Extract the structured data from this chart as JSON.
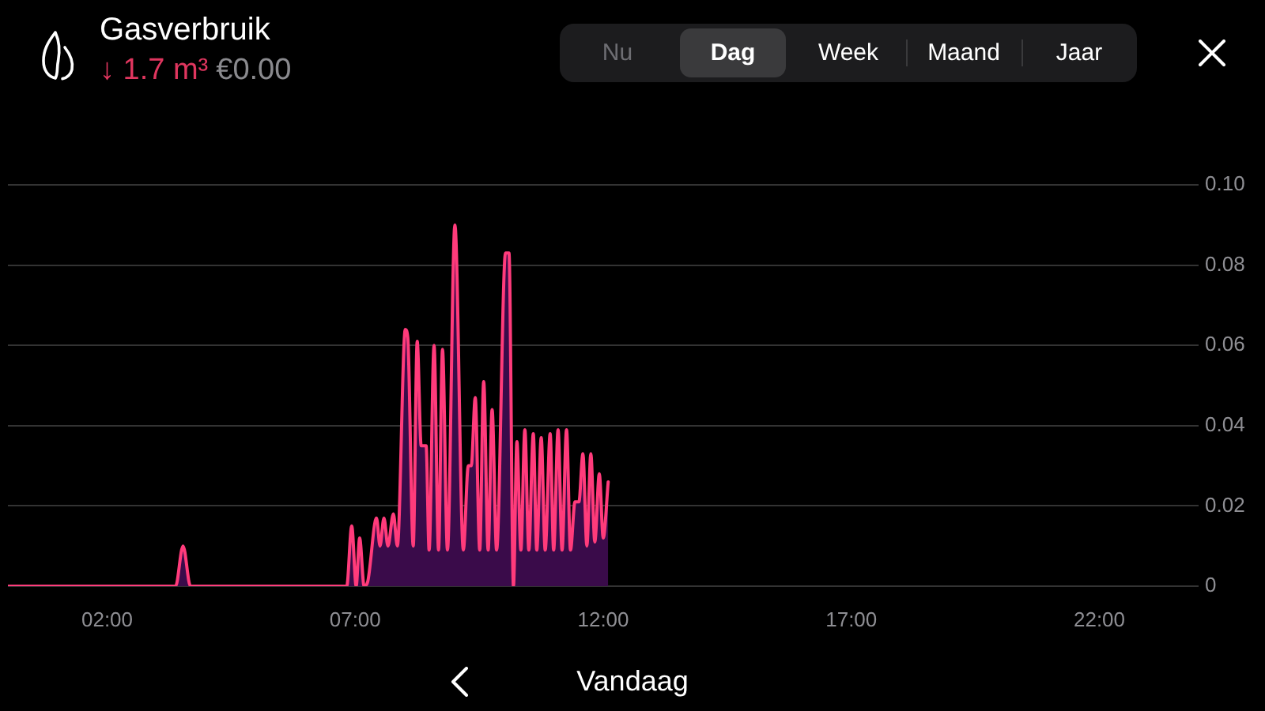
{
  "chart_data": {
    "type": "area",
    "title": "Gasverbruik",
    "subtitle": "↓ 1.7 m³",
    "annotations": [
      "€0.00",
      "Nu",
      "Dag",
      "Week",
      "Maand",
      "Jaar",
      "Vandaag"
    ],
    "xlim": [
      0,
      24
    ],
    "xticks": [
      {
        "value": 2,
        "label": "02:00"
      },
      {
        "value": 7,
        "label": "07:00"
      },
      {
        "value": 12,
        "label": "12:00"
      },
      {
        "value": 17,
        "label": "17:00"
      },
      {
        "value": 22,
        "label": "22:00"
      }
    ],
    "ylim": [
      0,
      0.1
    ],
    "yticks": [
      0,
      0.02,
      0.04,
      0.06,
      0.08,
      {
        "value": 0.1,
        "label": "0.10"
      }
    ],
    "grid": "y",
    "color": "#ff3b7b",
    "x": [
      0,
      3.38,
      3.53,
      3.68,
      6.83,
      6.93,
      7.02,
      7.09,
      7.18,
      7.25,
      7.43,
      7.5,
      7.58,
      7.66,
      7.77,
      7.85,
      8.01,
      8.06,
      8.17,
      8.25,
      8.33,
      8.43,
      8.49,
      8.59,
      8.68,
      8.76,
      8.86,
      9.01,
      9.18,
      9.28,
      9.34,
      9.42,
      9.51,
      9.59,
      9.68,
      9.76,
      9.85,
      10.03,
      10.1,
      10.19,
      10.26,
      10.34,
      10.42,
      10.5,
      10.59,
      10.66,
      10.75,
      10.83,
      10.93,
      11,
      11.09,
      11.17,
      11.26,
      11.34,
      11.43,
      11.51,
      11.59,
      11.67,
      11.75,
      11.83,
      11.92,
      12,
      12.1
    ],
    "values": [
      0,
      0,
      0.01,
      0,
      0,
      0.015,
      0,
      0.012,
      0,
      0.001,
      0.017,
      0.01,
      0.017,
      0.01,
      0.018,
      0.01,
      0.064,
      0.062,
      0.01,
      0.061,
      0.035,
      0.035,
      0.009,
      0.06,
      0.009,
      0.059,
      0.009,
      0.09,
      0.009,
      0.03,
      0.03,
      0.047,
      0.009,
      0.051,
      0.009,
      0.044,
      0.009,
      0.083,
      0.083,
      0,
      0.036,
      0.009,
      0.039,
      0.009,
      0.038,
      0.009,
      0.037,
      0.009,
      0.038,
      0.009,
      0.039,
      0.009,
      0.039,
      0.009,
      0.021,
      0.021,
      0.033,
      0.01,
      0.033,
      0.011,
      0.028,
      0.012,
      0.026
    ]
  }
}
